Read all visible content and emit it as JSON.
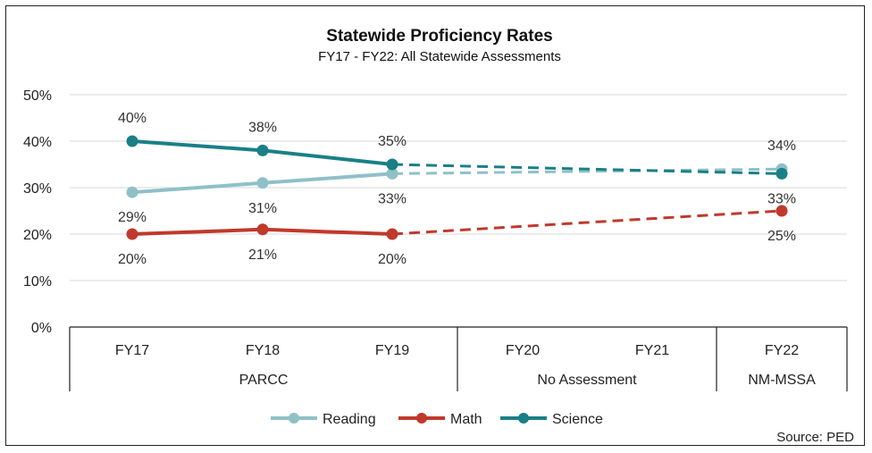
{
  "chart_data": {
    "type": "line",
    "title": "Statewide Proficiency Rates",
    "subtitle": "FY17 - FY22: All Statewide Assessments",
    "categories": [
      "FY17",
      "FY18",
      "FY19",
      "FY20",
      "FY21",
      "FY22"
    ],
    "groups": [
      {
        "label": "PARCC",
        "categories": [
          "FY17",
          "FY18",
          "FY19"
        ]
      },
      {
        "label": "No Assessment",
        "categories": [
          "FY20",
          "FY21"
        ]
      },
      {
        "label": "NM-MSSA",
        "categories": [
          "FY22"
        ]
      }
    ],
    "y_ticks": [
      "0%",
      "10%",
      "20%",
      "30%",
      "40%",
      "50%"
    ],
    "ylim": [
      0,
      50
    ],
    "grid": true,
    "legend_position": "bottom",
    "series": [
      {
        "name": "Reading",
        "color": "#8fc0c7",
        "values": [
          29,
          31,
          33,
          null,
          null,
          34
        ],
        "labels": [
          "29%",
          "31%",
          "33%",
          "",
          "",
          "34%"
        ],
        "label_pos": [
          "below",
          "below",
          "below",
          "",
          "",
          "above"
        ]
      },
      {
        "name": "Math",
        "color": "#c0392b",
        "values": [
          20,
          21,
          20,
          null,
          null,
          25
        ],
        "labels": [
          "20%",
          "21%",
          "20%",
          "",
          "",
          "25%"
        ],
        "label_pos": [
          "below",
          "below",
          "below",
          "",
          "",
          "below"
        ]
      },
      {
        "name": "Science",
        "color": "#1a7f86",
        "values": [
          40,
          38,
          35,
          null,
          null,
          33
        ],
        "labels": [
          "40%",
          "38%",
          "35%",
          "",
          "",
          "33%"
        ],
        "label_pos": [
          "above",
          "above",
          "above",
          "",
          "",
          "below"
        ]
      }
    ],
    "source": "Source: PED"
  }
}
